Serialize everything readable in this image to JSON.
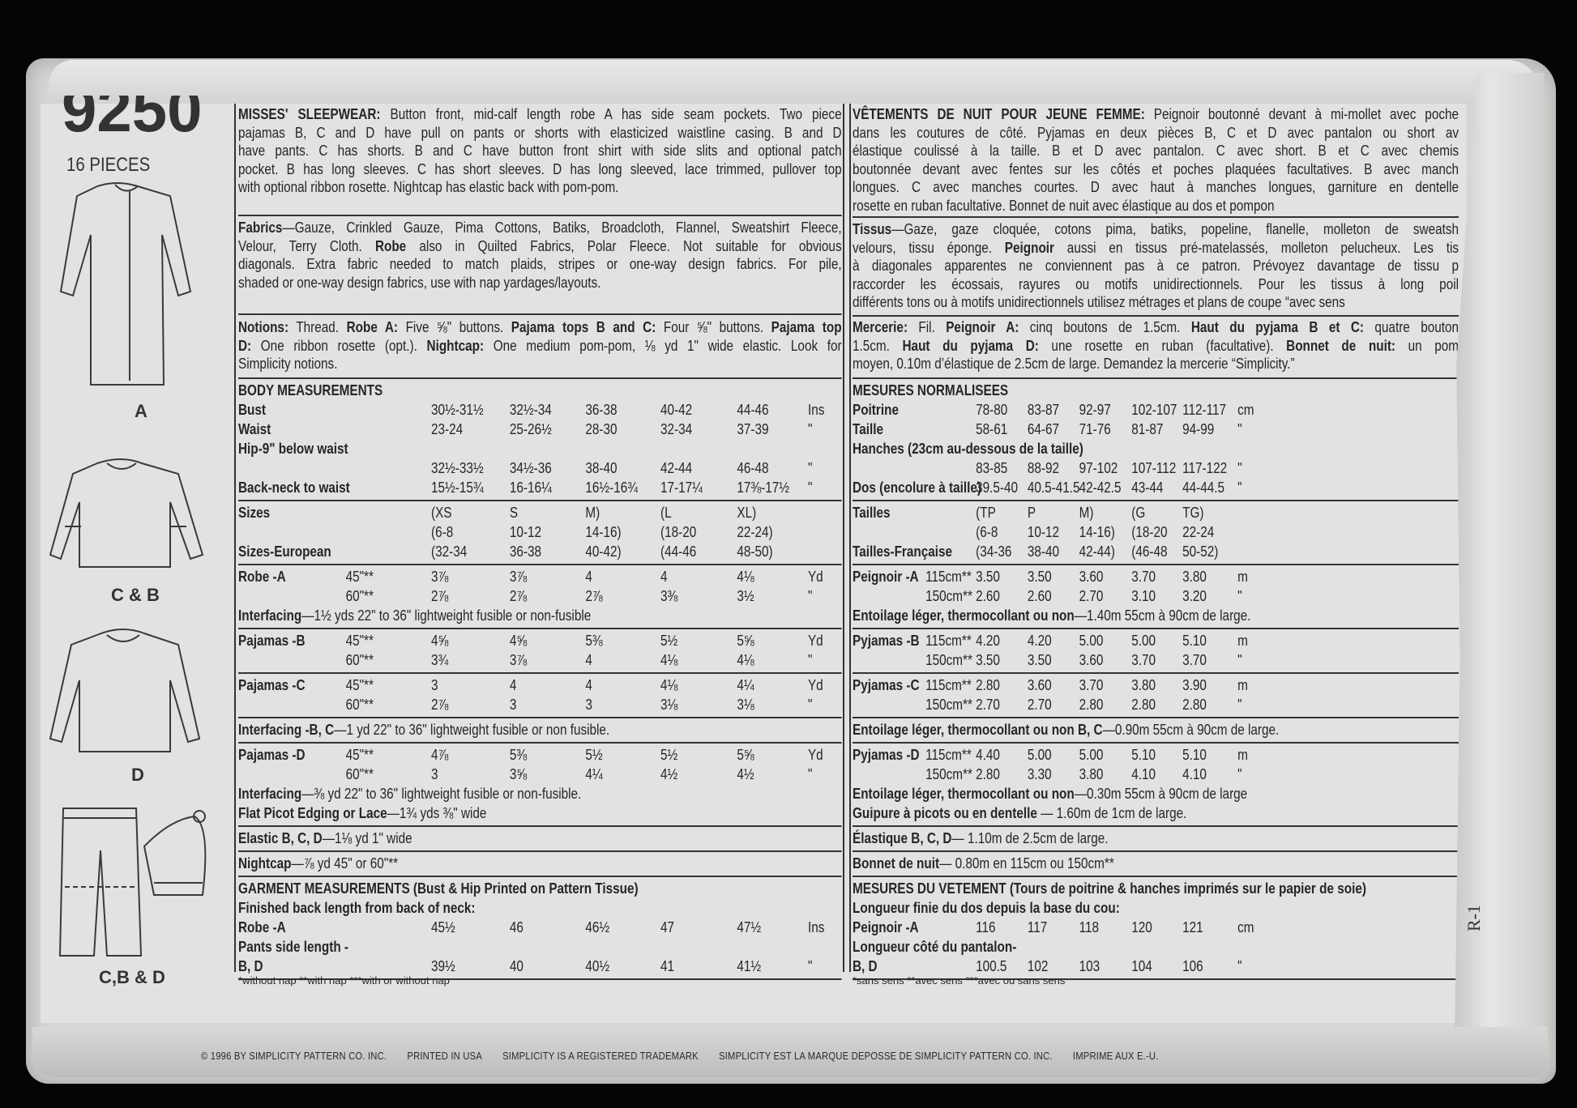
{
  "header": {
    "pattern_number": "9250",
    "pieces": "16 PIECES"
  },
  "views": {
    "a": "A",
    "cb": "C & B",
    "d": "D",
    "cbd": "C,B & D"
  },
  "side_mark": "R-1",
  "english": {
    "description": [
      [
        {
          "b": "MISSES' SLEEPWEAR:"
        },
        " Button front, mid-calf length robe A has side seam pockets. Two piece"
      ],
      [
        "pajamas B, C and D have pull on pants or shorts with elasticized waistline casing. B and D"
      ],
      [
        "have pants. C has shorts. B and C have button front shirt with side slits and optional patch"
      ],
      [
        "pocket. B has long sleeves. C has short sleeves. D has long sleeved, lace trimmed, pullover top"
      ],
      [
        "with optional ribbon rosette. Nightcap has elastic back with pom-pom."
      ]
    ],
    "fabrics": [
      [
        {
          "b": "Fabrics"
        },
        "—Gauze, Crinkled Gauze, Pima Cottons, Batiks, Broadcloth, Flannel, Sweatshirt Fleece,"
      ],
      [
        "Velour, Terry Cloth. ",
        {
          "b": "Robe"
        },
        " also in Quilted Fabrics, Polar Fleece. Not suitable for obvious"
      ],
      [
        "diagonals. Extra fabric needed to match plaids, stripes or one-way design fabrics. For pile,"
      ],
      [
        "shaded or one-way design fabrics, use with nap yardages/layouts."
      ]
    ],
    "notions": [
      [
        {
          "b": "Notions:"
        },
        " Thread. ",
        {
          "b": "Robe A:"
        },
        " Five ⅝\" buttons. ",
        {
          "b": "Pajama tops B and C:"
        },
        " Four ⅝\" buttons. ",
        {
          "b": "Pajama top"
        }
      ],
      [
        {
          "b": "D:"
        },
        " One ribbon rosette (opt.). ",
        {
          "b": "Nightcap:"
        },
        " One medium pom-pom, ⅛ yd 1\" wide elastic. Look for"
      ],
      [
        "Simplicity notions."
      ]
    ],
    "table": [
      {
        "items": [
          {
            "note": [
              {
                "b": "BODY MEASUREMENTS"
              }
            ]
          },
          {
            "label": "Bust",
            "width": "",
            "values": [
              "30½-31½",
              "32½-34",
              "36-38",
              "40-42",
              "44-46"
            ],
            "unit": "Ins"
          },
          {
            "label": "Waist",
            "width": "",
            "values": [
              "23-24",
              "25-26½",
              "28-30",
              "32-34",
              "37-39"
            ],
            "unit": "\""
          },
          {
            "note": [
              {
                "b": "Hip-9\" below waist"
              }
            ]
          },
          {
            "label": "",
            "width": "",
            "values": [
              "32½-33½",
              "34½-36",
              "38-40",
              "42-44",
              "46-48"
            ],
            "unit": "\""
          },
          {
            "label": "Back-neck to waist",
            "width": "",
            "values": [
              "15½-15¾",
              "16-16¼",
              "16½-16¾",
              "17-17¼",
              "17⅜-17½"
            ],
            "unit": "\""
          }
        ]
      },
      {
        "items": [
          {
            "label": "Sizes",
            "width": "",
            "values": [
              "(XS",
              "S",
              "M)",
              "(L",
              "XL)"
            ],
            "unit": ""
          },
          {
            "label": "",
            "width": "",
            "values": [
              "(6-8",
              "10-12",
              "14-16)",
              "(18-20",
              "22-24)"
            ],
            "unit": ""
          },
          {
            "label": "Sizes-European",
            "width": "",
            "values": [
              "(32-34",
              "36-38",
              "40-42)",
              "(44-46",
              "48-50)"
            ],
            "unit": ""
          }
        ]
      },
      {
        "items": [
          {
            "label": "Robe -A",
            "width": "45\"**",
            "values": [
              "3⅞",
              "3⅞",
              "4",
              "4",
              "4⅛"
            ],
            "unit": "Yd"
          },
          {
            "label": "",
            "width": "60\"**",
            "values": [
              "2⅞",
              "2⅞",
              "2⅞",
              "3⅜",
              "3½"
            ],
            "unit": "\""
          },
          {
            "note": [
              {
                "b": "Interfacing"
              },
              "—1½ yds  22\" to 36\" lightweight fusible or non-fusible"
            ]
          }
        ]
      },
      {
        "items": [
          {
            "label": "Pajamas -B",
            "width": "45\"**",
            "values": [
              "4⅝",
              "4⅝",
              "5⅜",
              "5½",
              "5⅝"
            ],
            "unit": "Yd"
          },
          {
            "label": "",
            "width": "60\"**",
            "values": [
              "3¾",
              "3⅞",
              "4",
              "4⅛",
              "4⅛"
            ],
            "unit": "\""
          }
        ]
      },
      {
        "items": [
          {
            "label": "Pajamas -C",
            "width": "45\"**",
            "values": [
              "3",
              "4",
              "4",
              "4⅛",
              "4¼"
            ],
            "unit": "Yd"
          },
          {
            "label": "",
            "width": "60\"**",
            "values": [
              "2⅞",
              "3",
              "3",
              "3⅛",
              "3⅛"
            ],
            "unit": "\""
          }
        ]
      },
      {
        "items": [
          {
            "note": [
              {
                "b": "Interfacing -B, C"
              },
              "—1 yd 22\" to 36\" lightweight fusible or non fusible."
            ]
          }
        ]
      },
      {
        "items": [
          {
            "label": "Pajamas -D",
            "width": "45\"**",
            "values": [
              "4⅞",
              "5⅜",
              "5½",
              "5½",
              "5⅝"
            ],
            "unit": "Yd"
          },
          {
            "label": "",
            "width": "60\"**",
            "values": [
              "3",
              "3⅝",
              "4¼",
              "4½",
              "4½"
            ],
            "unit": "\""
          },
          {
            "note": [
              {
                "b": "Interfacing"
              },
              "—⅜  yd 22\" to 36\" lightweight fusible or non-fusible."
            ]
          },
          {
            "note": [
              {
                "b": "Flat Picot Edging or Lace"
              },
              "—1¾  yds  ⅜\" wide"
            ]
          }
        ]
      },
      {
        "items": [
          {
            "note": [
              {
                "b": "Elastic B, C, D"
              },
              "—1⅛ yd 1\" wide"
            ]
          }
        ]
      },
      {
        "items": [
          {
            "note": [
              {
                "b": "Nightcap"
              },
              "—⅞ yd 45\" or 60\"**"
            ]
          }
        ]
      },
      {
        "items": [
          {
            "note": [
              {
                "b": "GARMENT MEASUREMENTS (Bust & Hip Printed on Pattern Tissue)"
              }
            ]
          },
          {
            "note": [
              {
                "b": "Finished back length from back of neck:"
              }
            ]
          },
          {
            "label": "Robe -A",
            "width": "",
            "values": [
              "45½",
              "46",
              "46½",
              "47",
              "47½"
            ],
            "unit": "Ins"
          },
          {
            "note": [
              {
                "b": "Pants side length -"
              }
            ]
          },
          {
            "label": "B, D",
            "width": "",
            "values": [
              "39½",
              "40",
              "40½",
              "41",
              "41½"
            ],
            "unit": "\""
          }
        ]
      }
    ],
    "footnote": "*without nap **with nap ***with or without nap"
  },
  "french": {
    "description": [
      [
        {
          "b": "VÊTEMENTS DE NUIT POUR JEUNE FEMME:"
        },
        " Peignoir boutonné devant à mi-mollet avec poche"
      ],
      [
        "dans les coutures de côté. Pyjamas en deux pièces B, C et D avec pantalon ou short av"
      ],
      [
        "élastique coulissé à la taille. B et D avec pantalon. C avec short. B et C avec chemis"
      ],
      [
        "boutonnée devant avec fentes sur les côtés et poches plaquées facultatives. B avec manch"
      ],
      [
        "longues. C avec manches courtes. D avec haut à manches longues, garniture en dentelle"
      ],
      [
        "rosette en ruban facultative. Bonnet de nuit avec élastique au dos et pompon"
      ]
    ],
    "fabrics": [
      [
        {
          "b": "Tissus"
        },
        "—Gaze, gaze cloquée, cotons pima, batiks, popeline, flanelle, molleton de sweatsh"
      ],
      [
        "velours, tissu éponge. ",
        {
          "b": "Peignoir"
        },
        " aussi en tissus pré-matelassés, molleton pelucheux. Les tis"
      ],
      [
        "à diagonales apparentes ne conviennent pas à ce patron. Prévoyez davantage de tissu p"
      ],
      [
        "raccorder les écossais, rayures ou motifs unidirectionnels. Pour les tissus à long poil"
      ],
      [
        "différents tons ou à motifs unidirectionnels utilisez métrages et plans de coupe “avec sens"
      ]
    ],
    "notions": [
      [
        {
          "b": "Mercerie:"
        },
        " Fil. ",
        {
          "b": "Peignoir A:"
        },
        " cinq boutons de 1.5cm. ",
        {
          "b": "Haut du pyjama B et C:"
        },
        " quatre bouton"
      ],
      [
        "1.5cm. ",
        {
          "b": "Haut du pyjama D:"
        },
        " une rosette en ruban (facultative). ",
        {
          "b": "Bonnet de nuit:"
        },
        " un pom"
      ],
      [
        "moyen, 0.10m d’élastique de 2.5cm de large. Demandez la mercerie “Simplicity.”"
      ]
    ],
    "table": [
      {
        "items": [
          {
            "note": [
              {
                "b": "MESURES NORMALISEES"
              }
            ]
          },
          {
            "label": "Poitrine",
            "width": "",
            "values": [
              "78-80",
              "83-87",
              "92-97",
              "102-107",
              "112-117"
            ],
            "unit": "cm"
          },
          {
            "label": "Taille",
            "width": "",
            "values": [
              "58-61",
              "64-67",
              "71-76",
              "81-87",
              "94-99"
            ],
            "unit": "\""
          },
          {
            "note": [
              {
                "b": "Hanches (23cm au-dessous de la taille)"
              }
            ]
          },
          {
            "label": "",
            "width": "",
            "values": [
              "83-85",
              "88-92",
              "97-102",
              "107-112",
              "117-122"
            ],
            "unit": "\""
          },
          {
            "label": "Dos (encolure à taille)",
            "width": "",
            "values": [
              "39.5-40",
              "40.5-41.5",
              "42-42.5",
              "43-44",
              "44-44.5"
            ],
            "unit": "\""
          }
        ]
      },
      {
        "items": [
          {
            "label": "Tailles",
            "width": "",
            "values": [
              "(TP",
              "P",
              "M)",
              "(G",
              "TG)"
            ],
            "unit": ""
          },
          {
            "label": "",
            "width": "",
            "values": [
              "(6-8",
              "10-12",
              "14-16)",
              "(18-20",
              "22-24"
            ],
            "unit": ""
          },
          {
            "label": "Tailles-Française",
            "width": "",
            "values": [
              "(34-36",
              "38-40",
              "42-44)",
              "(46-48",
              "50-52)"
            ],
            "unit": ""
          }
        ]
      },
      {
        "items": [
          {
            "label": "Peignoir -A",
            "width": "115cm**",
            "values": [
              "3.50",
              "3.50",
              "3.60",
              "3.70",
              "3.80"
            ],
            "unit": "m"
          },
          {
            "label": "",
            "width": "150cm**",
            "values": [
              "2.60",
              "2.60",
              "2.70",
              "3.10",
              "3.20"
            ],
            "unit": "\""
          },
          {
            "note": [
              {
                "b": "Entoilage léger, thermocollant ou non"
              },
              "—1.40m 55cm à 90cm de large."
            ]
          }
        ]
      },
      {
        "items": [
          {
            "label": "Pyjamas -B",
            "width": "115cm**",
            "values": [
              "4.20",
              "4.20",
              "5.00",
              "5.00",
              "5.10"
            ],
            "unit": "m"
          },
          {
            "label": "",
            "width": "150cm**",
            "values": [
              "3.50",
              "3.50",
              "3.60",
              "3.70",
              "3.70"
            ],
            "unit": "\""
          }
        ]
      },
      {
        "items": [
          {
            "label": "Pyjamas -C",
            "width": "115cm**",
            "values": [
              "2.80",
              "3.60",
              "3.70",
              "3.80",
              "3.90"
            ],
            "unit": "m"
          },
          {
            "label": "",
            "width": "150cm**",
            "values": [
              "2.70",
              "2.70",
              "2.80",
              "2.80",
              "2.80"
            ],
            "unit": "\""
          }
        ]
      },
      {
        "items": [
          {
            "note": [
              {
                "b": "Entoilage léger, thermocollant ou non B, C"
              },
              "—0.90m 55cm à 90cm de large."
            ]
          }
        ]
      },
      {
        "items": [
          {
            "label": "Pyjamas -D",
            "width": "115cm**",
            "values": [
              "4.40",
              "5.00",
              "5.00",
              "5.10",
              "5.10"
            ],
            "unit": "m"
          },
          {
            "label": "",
            "width": "150cm**",
            "values": [
              "2.80",
              "3.30",
              "3.80",
              "4.10",
              "4.10"
            ],
            "unit": "\""
          },
          {
            "note": [
              {
                "b": "Entoilage léger, thermocollant ou non"
              },
              "—0.30m 55cm à 90cm de large"
            ]
          },
          {
            "note": [
              {
                "b": "Guipure à picots ou en dentelle"
              },
              " — 1.60m de 1cm de large."
            ]
          }
        ]
      },
      {
        "items": [
          {
            "note": [
              {
                "b": "Élastique B, C, D"
              },
              "— 1.10m de 2.5cm de large."
            ]
          }
        ]
      },
      {
        "items": [
          {
            "note": [
              {
                "b": "Bonnet de nuit"
              },
              "— 0.80m en 115cm ou 150cm**"
            ]
          }
        ]
      },
      {
        "items": [
          {
            "note": [
              {
                "b": "MESURES DU VETEMENT"
              },
              {
                "b": " (Tours de poitrine & hanches imprimés sur le papier de soie)"
              }
            ]
          },
          {
            "note": [
              {
                "b": "Longueur finie du dos depuis la base du cou:"
              }
            ]
          },
          {
            "label": "Peignoir -A",
            "width": "",
            "values": [
              "116",
              "117",
              "118",
              "120",
              "121"
            ],
            "unit": "cm"
          },
          {
            "note": [
              {
                "b": "Longueur côté du pantalon-"
              }
            ]
          },
          {
            "label": "B, D",
            "width": "",
            "values": [
              "100.5",
              "102",
              "103",
              "104",
              "106"
            ],
            "unit": "\""
          }
        ]
      }
    ],
    "footnote": "*sans sens **avec sens ***avec ou sans sens"
  },
  "copyright": [
    "© 1996 BY SIMPLICITY PATTERN CO. INC.",
    "PRINTED IN USA",
    "SIMPLICITY IS A REGISTERED TRADEMARK",
    "SIMPLICITY EST LA MARQUE DEPOSSE DE SIMPLICITY PATTERN CO. INC.",
    "IMPRIME AUX E.-U."
  ],
  "colors": {
    "background": "#050505",
    "paper": "#e2e2e0",
    "ink": "#262626"
  }
}
